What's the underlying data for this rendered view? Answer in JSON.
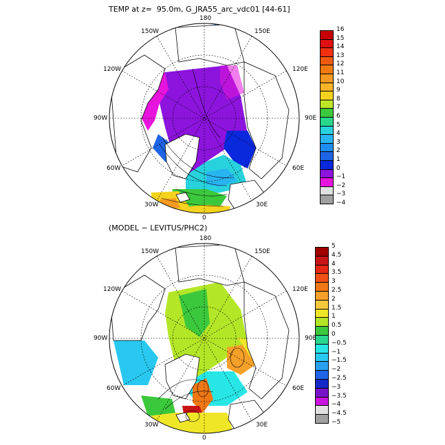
{
  "top": {
    "title": "TEMP at z=  95.0m, G_JRA55_arc_vdc01 [44-61]",
    "lon_labels": {
      "l180": "180",
      "l150w": "150W",
      "l150e": "150E",
      "l120w": "120W",
      "l120e": "120E",
      "l90w": "90W",
      "l90e": "90E",
      "l60w": "60W",
      "l60e": "60E",
      "l30w": "30W",
      "l30e": "30E",
      "l0": "0"
    },
    "colorbar": {
      "labels": [
        "16",
        "15",
        "14",
        "13",
        "12",
        "11",
        "10",
        "9",
        "8",
        "7",
        "6",
        "5",
        "4",
        "3",
        "2",
        "1",
        "0",
        "−1",
        "−2",
        "−3",
        "−4"
      ],
      "colors": [
        "#c80000",
        "#e01010",
        "#f03010",
        "#f05a10",
        "#f07a10",
        "#f59a20",
        "#fab428",
        "#f5d21e",
        "#bee628",
        "#3cc83c",
        "#28d78c",
        "#28d2dc",
        "#28b4f0",
        "#1e8cf0",
        "#1e64e6",
        "#0a28dc",
        "#8c14dc",
        "#e614dc",
        "#e0e0e0",
        "#a0a0a0"
      ]
    }
  },
  "bottom": {
    "title": "(MODEL − LEVITUS/PHC2)",
    "lon_labels": {
      "l180": "180",
      "l150w": "150W",
      "l150e": "150E",
      "l120w": "120W",
      "l120e": "120E",
      "l90w": "90W",
      "l90e": "90E",
      "l60w": "60W",
      "l60e": "60E",
      "l30w": "30W",
      "l30e": "30E",
      "l0": "0"
    },
    "colorbar": {
      "labels": [
        "5",
        "4.5",
        "4",
        "3.5",
        "3",
        "2.5",
        "2",
        "1.5",
        "1",
        "0.5",
        "0",
        "−0.5",
        "−1",
        "−1.5",
        "−2",
        "−2.5",
        "−3",
        "−3.5",
        "−4",
        "−4.5",
        "−5"
      ],
      "colors": [
        "#a00000",
        "#c81414",
        "#e62814",
        "#f05014",
        "#f07814",
        "#f5a028",
        "#fac83c",
        "#f0e628",
        "#b4e628",
        "#3cc83c",
        "#28d78c",
        "#28e6e6",
        "#28c8f0",
        "#28a0f0",
        "#1e64e6",
        "#1428c8",
        "#7814c8",
        "#c814dc",
        "#e0e0e0",
        "#a0a0a0"
      ]
    }
  }
}
